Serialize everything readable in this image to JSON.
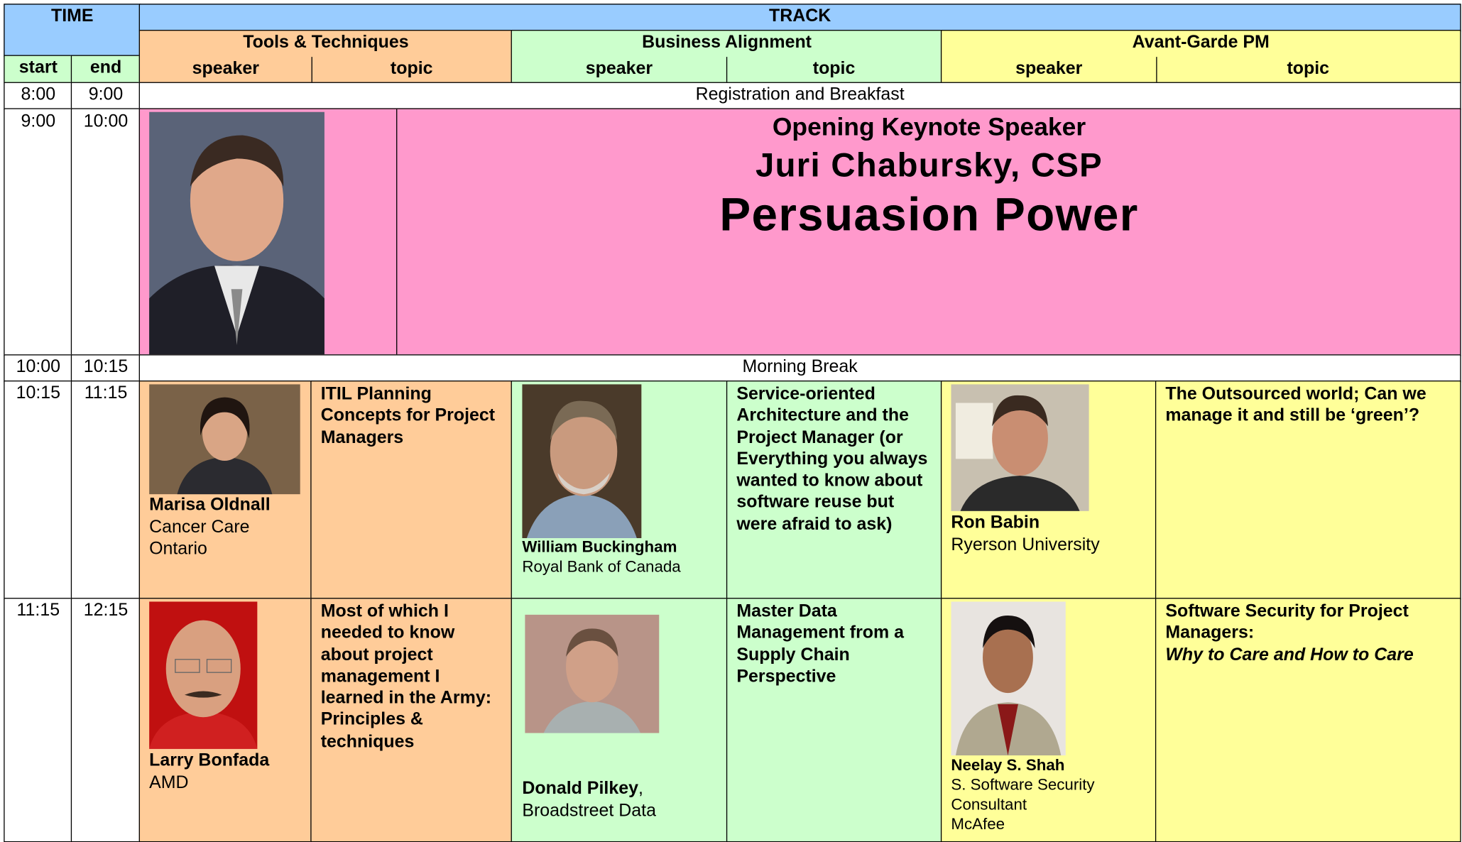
{
  "header": {
    "time": "TIME",
    "track": "TRACK",
    "start": "start",
    "end": "end",
    "tracks": [
      {
        "name": "Tools & Techniques",
        "speaker": "speaker",
        "topic": "topic"
      },
      {
        "name": "Business Alignment",
        "speaker": "speaker",
        "topic": "topic"
      },
      {
        "name": "Avant-Garde PM",
        "speaker": "speaker",
        "topic": "topic"
      }
    ]
  },
  "rows": [
    {
      "start": "8:00",
      "end": "9:00",
      "event": "Registration and Breakfast"
    },
    {
      "start": "9:00",
      "end": "10:00",
      "keynote": {
        "label": "Opening Keynote Speaker",
        "speaker": "Juri Chabursky, CSP",
        "title": "Persuasion Power"
      }
    },
    {
      "start": "10:00",
      "end": "10:15",
      "event": "Morning Break"
    },
    {
      "start": "10:15",
      "end": "11:15",
      "sessions": [
        {
          "name": "Marisa Oldnall",
          "affiliation": [
            "Cancer Care",
            "Ontario"
          ],
          "topic": "ITIL Planning Concepts for Project Managers"
        },
        {
          "name": "William Buckingham",
          "affiliation": [
            "Royal Bank of Canada"
          ],
          "topic": "Service-oriented Architecture and the Project Manager (or Everything you always wanted to know about software reuse but were afraid to ask)"
        },
        {
          "name": "Ron Babin",
          "affiliation": [
            "Ryerson University"
          ],
          "topic": "The Outsourced world; Can we manage it and still be ‘green’?"
        }
      ]
    },
    {
      "start": "11:15",
      "end": "12:15",
      "sessions": [
        {
          "name": "Larry Bonfada",
          "affiliation": [
            "AMD"
          ],
          "topic": "Most of which I needed to know about project management I learned in the Army: Principles & techniques"
        },
        {
          "name": "Donald Pilkey",
          "name_suffix": ",",
          "affiliation": [
            "Broadstreet Data"
          ],
          "topic": "Master Data Management from a Supply Chain Perspective"
        },
        {
          "name": "Neelay S. Shah",
          "affiliation": [
            "S. Software Security",
            "Consultant",
            "McAfee"
          ],
          "topic": "Software Security for Project Managers:",
          "topic_italic": "Why to Care and How to Care"
        }
      ]
    }
  ]
}
